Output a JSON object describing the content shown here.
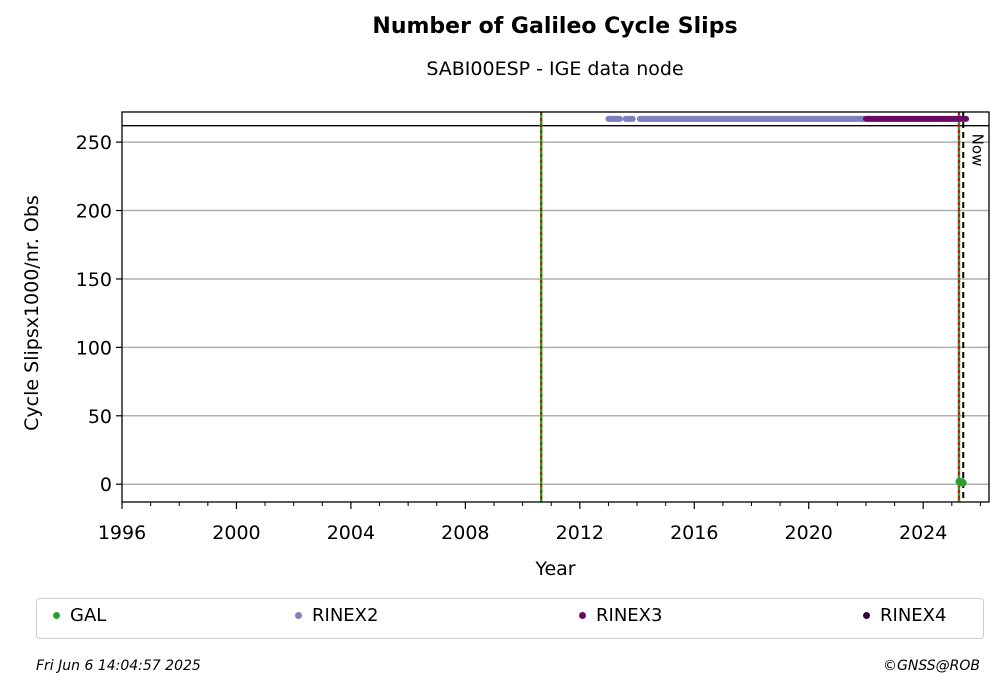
{
  "chart_data": {
    "type": "scatter",
    "title": "Number of Galileo Cycle Slips",
    "subtitle": "SABI00ESP - IGE data node",
    "xlabel": "Year",
    "ylabel": "Cycle Slipsx1000/nr. Obs",
    "xlim": [
      1996,
      2026.3
    ],
    "ylim": [
      -13,
      272
    ],
    "x_ticks": [
      1996,
      2000,
      2004,
      2008,
      2012,
      2016,
      2020,
      2024
    ],
    "y_ticks": [
      0,
      50,
      100,
      150,
      200,
      250
    ],
    "grid": "horizontal",
    "availability_level": 267,
    "availability_separator": 262,
    "series": [
      {
        "name": "GAL",
        "color": "#2ca02c",
        "points": [
          [
            2025.25,
            2
          ],
          [
            2025.3,
            1
          ],
          [
            2025.35,
            2
          ],
          [
            2025.4,
            1
          ]
        ]
      },
      {
        "name": "RINEX2",
        "color": "#7f7fbf",
        "segments": [
          [
            2013.0,
            2013.4
          ],
          [
            2013.6,
            2013.85
          ],
          [
            2014.1,
            2021.9
          ]
        ]
      },
      {
        "name": "RINEX3",
        "color": "#6a0a64",
        "segments": [
          [
            2022.0,
            2025.5
          ]
        ]
      },
      {
        "name": "RINEX4",
        "color": "#2b0a2b",
        "segments": []
      }
    ],
    "vertical_lines": [
      {
        "x": 2010.65,
        "colors": [
          "#2ca02c",
          "#cc0000"
        ],
        "style": "dashed"
      },
      {
        "x": 2025.25,
        "colors": [
          "#2ca02c",
          "#cc0000"
        ],
        "style": "dashed"
      },
      {
        "x": 2025.4,
        "colors": [
          "#000000"
        ],
        "style": "dashed",
        "label": "Now"
      }
    ],
    "legend_position": "bottom"
  },
  "footer": {
    "date": "Fri Jun  6 14:04:57 2025",
    "copyright": "©GNSS@ROB"
  }
}
